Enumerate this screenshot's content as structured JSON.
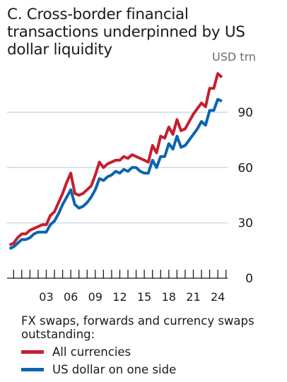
{
  "title": "C. Cross-border financial transactions underpinned by US dollar liquidity",
  "unit": "USD trn",
  "legend": {
    "heading": "FX swaps, forwards and currency swaps outstanding:",
    "items": [
      {
        "label": "All currencies",
        "color": "#c41f30"
      },
      {
        "label": "US dollar on one side",
        "color": "#0b64b0"
      }
    ]
  },
  "chart_data": {
    "type": "line",
    "ylim": [
      0,
      120
    ],
    "xlim": [
      1998.2,
      2025.2
    ],
    "y_ticks": [
      0,
      30,
      60,
      90
    ],
    "x_tick_labels": [
      "03",
      "06",
      "09",
      "12",
      "15",
      "18",
      "21",
      "24"
    ],
    "x_tick_years": [
      2003,
      2006,
      2009,
      2012,
      2015,
      2018,
      2021,
      2024
    ],
    "grid": true,
    "series": [
      {
        "name": "All currencies",
        "color": "#c41f30",
        "x": [
          1998.5,
          1999,
          1999.5,
          2000,
          2000.5,
          2001,
          2001.5,
          2002,
          2002.5,
          2003,
          2003.5,
          2004,
          2004.5,
          2005,
          2005.5,
          2006,
          2006.5,
          2007,
          2007.5,
          2008,
          2008.5,
          2009,
          2009.5,
          2010,
          2010.5,
          2011,
          2011.5,
          2012,
          2012.5,
          2013,
          2013.5,
          2014,
          2014.5,
          2015,
          2015.5,
          2016,
          2016.5,
          2017,
          2017.5,
          2018,
          2018.5,
          2019,
          2019.5,
          2020,
          2020.5,
          2021,
          2021.5,
          2022,
          2022.5,
          2023,
          2023.5,
          2024,
          2024.5
        ],
        "values": [
          18,
          19,
          22,
          24,
          24,
          26,
          27,
          28,
          29,
          29,
          34,
          36,
          41,
          46,
          52,
          57,
          46,
          45,
          46,
          48,
          50,
          56,
          63,
          60,
          62,
          63,
          64,
          64,
          66,
          65,
          67,
          66,
          65,
          64,
          63,
          72,
          68,
          77,
          76,
          82,
          78,
          86,
          80,
          81,
          85,
          89,
          92,
          95,
          93,
          103,
          103,
          111,
          109
        ]
      },
      {
        "name": "US dollar on one side",
        "color": "#0b64b0",
        "x": [
          1998.5,
          1999,
          1999.5,
          2000,
          2000.5,
          2001,
          2001.5,
          2002,
          2002.5,
          2003,
          2003.5,
          2004,
          2004.5,
          2005,
          2005.5,
          2006,
          2006.5,
          2007,
          2007.5,
          2008,
          2008.5,
          2009,
          2009.5,
          2010,
          2010.5,
          2011,
          2011.5,
          2012,
          2012.5,
          2013,
          2013.5,
          2014,
          2014.5,
          2015,
          2015.5,
          2016,
          2016.5,
          2017,
          2017.5,
          2018,
          2018.5,
          2019,
          2019.5,
          2020,
          2020.5,
          2021,
          2021.5,
          2022,
          2022.5,
          2023,
          2023.5,
          2024,
          2024.5
        ],
        "values": [
          16,
          17,
          19,
          21,
          21,
          22,
          24,
          25,
          25,
          25,
          29,
          31,
          35,
          40,
          44,
          48,
          40,
          38,
          39,
          41,
          44,
          48,
          54,
          53,
          55,
          56,
          58,
          57,
          59,
          58,
          60,
          60,
          58,
          57,
          57,
          64,
          60,
          66,
          66,
          73,
          70,
          77,
          71,
          72,
          75,
          78,
          81,
          85,
          83,
          91,
          91,
          97,
          96
        ]
      }
    ]
  }
}
